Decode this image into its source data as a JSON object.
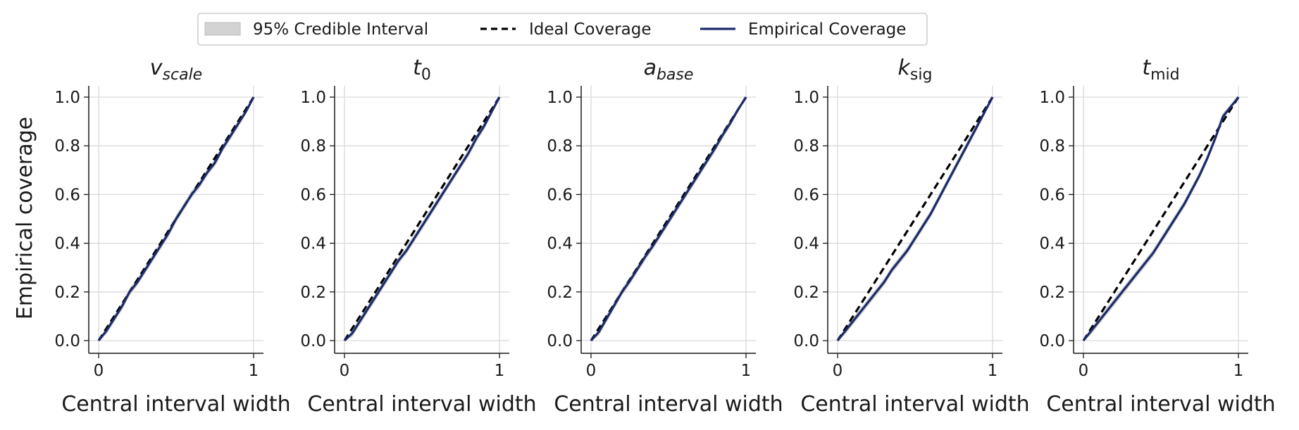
{
  "legend": {
    "entries": [
      {
        "label": "95% Credible Interval",
        "kind": "band",
        "color": "#d3d3d3"
      },
      {
        "label": "Ideal Coverage",
        "kind": "dashed-line",
        "color": "#000000"
      },
      {
        "label": "Empirical Coverage",
        "kind": "line",
        "color": "#1b2a6b"
      }
    ]
  },
  "shared_ylabel": "Empirical coverage",
  "chart_data": [
    {
      "type": "line",
      "title": {
        "base": "v",
        "sub": "scale",
        "italic_sub": true
      },
      "xlabel": "Central interval width",
      "ylabel": "Empirical coverage",
      "xlim": [
        0,
        1
      ],
      "ylim": [
        0,
        1
      ],
      "xticks": [
        "0",
        "1"
      ],
      "yticks": [
        "0.0",
        "0.2",
        "0.4",
        "0.6",
        "0.8",
        "1.0"
      ],
      "grid": "horizontal",
      "series": [
        {
          "name": "Ideal Coverage",
          "x": [
            0,
            1
          ],
          "y": [
            0,
            1
          ]
        },
        {
          "name": "Empirical Coverage",
          "x": [
            0,
            0.05,
            0.1,
            0.15,
            0.2,
            0.25,
            0.3,
            0.35,
            0.4,
            0.45,
            0.5,
            0.55,
            0.6,
            0.65,
            0.7,
            0.75,
            0.8,
            0.85,
            0.9,
            0.95,
            1.0
          ],
          "y": [
            0,
            0.04,
            0.09,
            0.14,
            0.2,
            0.24,
            0.29,
            0.34,
            0.39,
            0.44,
            0.5,
            0.55,
            0.6,
            0.64,
            0.69,
            0.73,
            0.79,
            0.84,
            0.89,
            0.94,
            1.0
          ]
        },
        {
          "name": "95% Credible Interval",
          "x": [
            0,
            0.05,
            0.1,
            0.15,
            0.2,
            0.25,
            0.3,
            0.35,
            0.4,
            0.45,
            0.5,
            0.55,
            0.6,
            0.65,
            0.7,
            0.75,
            0.8,
            0.85,
            0.9,
            0.95,
            1.0
          ],
          "lower": [
            0,
            0.025,
            0.075,
            0.125,
            0.185,
            0.225,
            0.275,
            0.325,
            0.375,
            0.425,
            0.485,
            0.535,
            0.585,
            0.625,
            0.675,
            0.715,
            0.775,
            0.825,
            0.875,
            0.93,
            1.0
          ],
          "upper": [
            0,
            0.055,
            0.105,
            0.155,
            0.215,
            0.255,
            0.305,
            0.355,
            0.405,
            0.455,
            0.515,
            0.565,
            0.615,
            0.655,
            0.705,
            0.745,
            0.805,
            0.855,
            0.905,
            0.95,
            1.0
          ]
        }
      ]
    },
    {
      "type": "line",
      "title": {
        "base": "t",
        "sub": "0",
        "italic_sub": false
      },
      "xlabel": "Central interval width",
      "ylabel": "Empirical coverage",
      "xlim": [
        0,
        1
      ],
      "ylim": [
        0,
        1
      ],
      "xticks": [
        "0",
        "1"
      ],
      "yticks": [
        "0.0",
        "0.2",
        "0.4",
        "0.6",
        "0.8",
        "1.0"
      ],
      "grid": "horizontal",
      "series": [
        {
          "name": "Ideal Coverage",
          "x": [
            0,
            1
          ],
          "y": [
            0,
            1
          ]
        },
        {
          "name": "Empirical Coverage",
          "x": [
            0,
            0.05,
            0.1,
            0.15,
            0.2,
            0.25,
            0.3,
            0.35,
            0.4,
            0.45,
            0.5,
            0.55,
            0.6,
            0.65,
            0.7,
            0.75,
            0.8,
            0.85,
            0.9,
            0.95,
            1.0
          ],
          "y": [
            0,
            0.03,
            0.08,
            0.13,
            0.18,
            0.23,
            0.28,
            0.33,
            0.37,
            0.42,
            0.47,
            0.52,
            0.57,
            0.62,
            0.67,
            0.72,
            0.77,
            0.83,
            0.88,
            0.94,
            1.0
          ]
        },
        {
          "name": "95% Credible Interval",
          "x": [
            0,
            0.05,
            0.1,
            0.15,
            0.2,
            0.25,
            0.3,
            0.35,
            0.4,
            0.45,
            0.5,
            0.55,
            0.6,
            0.65,
            0.7,
            0.75,
            0.8,
            0.85,
            0.9,
            0.95,
            1.0
          ],
          "lower": [
            0,
            0.015,
            0.065,
            0.115,
            0.165,
            0.215,
            0.265,
            0.315,
            0.355,
            0.405,
            0.455,
            0.505,
            0.555,
            0.605,
            0.655,
            0.705,
            0.755,
            0.815,
            0.865,
            0.93,
            1.0
          ],
          "upper": [
            0,
            0.045,
            0.095,
            0.145,
            0.195,
            0.245,
            0.295,
            0.345,
            0.385,
            0.435,
            0.485,
            0.535,
            0.585,
            0.635,
            0.685,
            0.735,
            0.785,
            0.845,
            0.895,
            0.95,
            1.0
          ]
        }
      ]
    },
    {
      "type": "line",
      "title": {
        "base": "a",
        "sub": "base",
        "italic_sub": true
      },
      "xlabel": "Central interval width",
      "ylabel": "Empirical coverage",
      "xlim": [
        0,
        1
      ],
      "ylim": [
        0,
        1
      ],
      "xticks": [
        "0",
        "1"
      ],
      "yticks": [
        "0.0",
        "0.2",
        "0.4",
        "0.6",
        "0.8",
        "1.0"
      ],
      "grid": "horizontal",
      "series": [
        {
          "name": "Ideal Coverage",
          "x": [
            0,
            1
          ],
          "y": [
            0,
            1
          ]
        },
        {
          "name": "Empirical Coverage",
          "x": [
            0,
            0.05,
            0.1,
            0.15,
            0.2,
            0.25,
            0.3,
            0.35,
            0.4,
            0.45,
            0.5,
            0.55,
            0.6,
            0.65,
            0.7,
            0.75,
            0.8,
            0.85,
            0.9,
            0.95,
            1.0
          ],
          "y": [
            0,
            0.035,
            0.09,
            0.145,
            0.2,
            0.245,
            0.295,
            0.345,
            0.39,
            0.44,
            0.49,
            0.54,
            0.59,
            0.64,
            0.69,
            0.74,
            0.79,
            0.845,
            0.895,
            0.95,
            1.0
          ]
        },
        {
          "name": "95% Credible Interval",
          "x": [
            0,
            0.05,
            0.1,
            0.15,
            0.2,
            0.25,
            0.3,
            0.35,
            0.4,
            0.45,
            0.5,
            0.55,
            0.6,
            0.65,
            0.7,
            0.75,
            0.8,
            0.85,
            0.9,
            0.95,
            1.0
          ],
          "lower": [
            0,
            0.02,
            0.075,
            0.13,
            0.185,
            0.23,
            0.28,
            0.33,
            0.375,
            0.425,
            0.475,
            0.525,
            0.575,
            0.625,
            0.675,
            0.725,
            0.775,
            0.83,
            0.88,
            0.94,
            1.0
          ],
          "upper": [
            0,
            0.05,
            0.105,
            0.16,
            0.215,
            0.26,
            0.31,
            0.36,
            0.405,
            0.455,
            0.505,
            0.555,
            0.605,
            0.655,
            0.705,
            0.755,
            0.805,
            0.86,
            0.91,
            0.96,
            1.0
          ]
        }
      ]
    },
    {
      "type": "line",
      "title": {
        "base": "k",
        "sub": "sig",
        "italic_sub": false
      },
      "xlabel": "Central interval width",
      "ylabel": "Empirical coverage",
      "xlim": [
        0,
        1
      ],
      "ylim": [
        0,
        1
      ],
      "xticks": [
        "0",
        "1"
      ],
      "yticks": [
        "0.0",
        "0.2",
        "0.4",
        "0.6",
        "0.8",
        "1.0"
      ],
      "grid": "horizontal",
      "series": [
        {
          "name": "Ideal Coverage",
          "x": [
            0,
            1
          ],
          "y": [
            0,
            1
          ]
        },
        {
          "name": "Empirical Coverage",
          "x": [
            0,
            0.05,
            0.1,
            0.15,
            0.2,
            0.25,
            0.3,
            0.35,
            0.4,
            0.45,
            0.5,
            0.55,
            0.6,
            0.65,
            0.7,
            0.75,
            0.8,
            0.85,
            0.9,
            0.95,
            1.0
          ],
          "y": [
            0,
            0.04,
            0.08,
            0.12,
            0.16,
            0.2,
            0.24,
            0.29,
            0.33,
            0.37,
            0.42,
            0.47,
            0.52,
            0.58,
            0.64,
            0.7,
            0.76,
            0.82,
            0.88,
            0.94,
            1.0
          ]
        },
        {
          "name": "95% Credible Interval",
          "x": [
            0,
            0.05,
            0.1,
            0.15,
            0.2,
            0.25,
            0.3,
            0.35,
            0.4,
            0.45,
            0.5,
            0.55,
            0.6,
            0.65,
            0.7,
            0.75,
            0.8,
            0.85,
            0.9,
            0.95,
            1.0
          ],
          "lower": [
            0,
            0.025,
            0.065,
            0.105,
            0.145,
            0.185,
            0.225,
            0.275,
            0.315,
            0.355,
            0.405,
            0.455,
            0.505,
            0.565,
            0.625,
            0.685,
            0.745,
            0.805,
            0.865,
            0.93,
            1.0
          ],
          "upper": [
            0,
            0.055,
            0.095,
            0.135,
            0.175,
            0.215,
            0.255,
            0.305,
            0.345,
            0.385,
            0.435,
            0.485,
            0.535,
            0.595,
            0.655,
            0.715,
            0.775,
            0.835,
            0.895,
            0.95,
            1.0
          ]
        }
      ]
    },
    {
      "type": "line",
      "title": {
        "base": "t",
        "sub": "mid",
        "italic_sub": false
      },
      "xlabel": "Central interval width",
      "ylabel": "Empirical coverage",
      "xlim": [
        0,
        1
      ],
      "ylim": [
        0,
        1
      ],
      "xticks": [
        "0",
        "1"
      ],
      "yticks": [
        "0.0",
        "0.2",
        "0.4",
        "0.6",
        "0.8",
        "1.0"
      ],
      "grid": "horizontal",
      "series": [
        {
          "name": "Ideal Coverage",
          "x": [
            0,
            1
          ],
          "y": [
            0,
            1
          ]
        },
        {
          "name": "Empirical Coverage",
          "x": [
            0,
            0.05,
            0.1,
            0.15,
            0.2,
            0.25,
            0.3,
            0.35,
            0.4,
            0.45,
            0.5,
            0.55,
            0.6,
            0.65,
            0.7,
            0.75,
            0.8,
            0.85,
            0.9,
            0.95,
            1.0
          ],
          "y": [
            0,
            0.04,
            0.08,
            0.12,
            0.16,
            0.2,
            0.24,
            0.28,
            0.32,
            0.36,
            0.41,
            0.46,
            0.51,
            0.56,
            0.62,
            0.68,
            0.75,
            0.83,
            0.92,
            0.96,
            1.0
          ]
        },
        {
          "name": "95% Credible Interval",
          "x": [
            0,
            0.05,
            0.1,
            0.15,
            0.2,
            0.25,
            0.3,
            0.35,
            0.4,
            0.45,
            0.5,
            0.55,
            0.6,
            0.65,
            0.7,
            0.75,
            0.8,
            0.85,
            0.9,
            0.95,
            1.0
          ],
          "lower": [
            0,
            0.025,
            0.065,
            0.105,
            0.145,
            0.185,
            0.225,
            0.265,
            0.305,
            0.345,
            0.395,
            0.445,
            0.495,
            0.545,
            0.605,
            0.665,
            0.735,
            0.815,
            0.905,
            0.95,
            1.0
          ],
          "upper": [
            0,
            0.055,
            0.095,
            0.135,
            0.175,
            0.215,
            0.255,
            0.295,
            0.335,
            0.375,
            0.425,
            0.475,
            0.525,
            0.575,
            0.635,
            0.695,
            0.765,
            0.845,
            0.935,
            0.97,
            1.0
          ]
        }
      ]
    }
  ]
}
